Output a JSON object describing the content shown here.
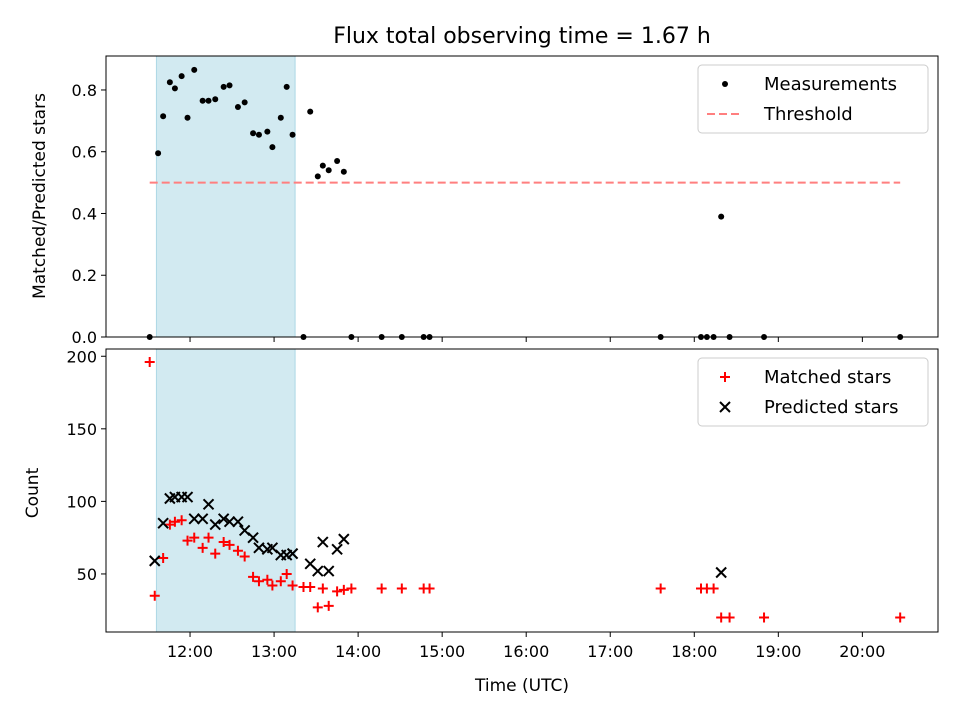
{
  "figure": {
    "title": "Flux total observing time = 1.67 h",
    "shaded_span": {
      "start_hour": 11.6,
      "end_hour": 13.25,
      "color": "#add8e6"
    }
  },
  "chart_data": [
    {
      "type": "scatter",
      "ylabel": "Matched/Predicted stars",
      "xlim": [
        11.0,
        20.9
      ],
      "ylim": [
        0,
        0.91
      ],
      "yticks": [
        0.0,
        0.2,
        0.4,
        0.6,
        0.8
      ],
      "ytick_labels": [
        "0.0",
        "0.2",
        "0.4",
        "0.6",
        "0.8"
      ],
      "legend": "top-right",
      "legend_entries": [
        "Measurements",
        "Threshold"
      ],
      "series": [
        {
          "name": "Measurements",
          "marker": "dot",
          "color": "#000000",
          "x": [
            11.52,
            11.62,
            11.68,
            11.76,
            11.82,
            11.9,
            11.97,
            12.05,
            12.15,
            12.22,
            12.3,
            12.4,
            12.47,
            12.57,
            12.65,
            12.75,
            12.82,
            12.92,
            12.98,
            13.08,
            13.15,
            13.22,
            13.35,
            13.43,
            13.52,
            13.58,
            13.65,
            13.75,
            13.83,
            13.92,
            14.28,
            14.52,
            14.78,
            14.85,
            17.6,
            18.08,
            18.15,
            18.23,
            18.32,
            18.42,
            18.83,
            20.45
          ],
          "y": [
            0.0,
            0.595,
            0.715,
            0.825,
            0.805,
            0.845,
            0.71,
            0.865,
            0.765,
            0.765,
            0.77,
            0.81,
            0.815,
            0.745,
            0.76,
            0.66,
            0.655,
            0.665,
            0.615,
            0.71,
            0.81,
            0.655,
            0.0,
            0.73,
            0.52,
            0.555,
            0.54,
            0.57,
            0.535,
            0.0,
            0.0,
            0.0,
            0.0,
            0.0,
            0.0,
            0.0,
            0.0,
            0.0,
            0.39,
            0.0,
            0.0,
            0.0
          ]
        },
        {
          "name": "Threshold",
          "marker": "dashed-line",
          "color": "#ff7f7f",
          "x": [
            11.52,
            20.45
          ],
          "y": [
            0.5,
            0.5
          ]
        }
      ]
    },
    {
      "type": "scatter",
      "xlabel": "Time (UTC)",
      "ylabel": "Count",
      "xlim": [
        11.0,
        20.9
      ],
      "ylim": [
        10,
        205
      ],
      "xticks": [
        12,
        13,
        14,
        15,
        16,
        17,
        18,
        19,
        20
      ],
      "xtick_labels": [
        "12:00",
        "13:00",
        "14:00",
        "15:00",
        "16:00",
        "17:00",
        "18:00",
        "19:00",
        "20:00"
      ],
      "yticks": [
        50,
        100,
        150,
        200
      ],
      "ytick_labels": [
        "50",
        "100",
        "150",
        "200"
      ],
      "legend": "top-right",
      "legend_entries": [
        "Matched stars",
        "Predicted stars"
      ],
      "series": [
        {
          "name": "Matched stars",
          "marker": "plus",
          "color": "#ff0000",
          "x": [
            11.52,
            11.58,
            11.68,
            11.76,
            11.82,
            11.9,
            11.97,
            12.05,
            12.15,
            12.22,
            12.3,
            12.4,
            12.47,
            12.57,
            12.65,
            12.75,
            12.82,
            12.92,
            12.98,
            13.08,
            13.15,
            13.22,
            13.35,
            13.43,
            13.52,
            13.58,
            13.65,
            13.75,
            13.83,
            13.92,
            14.28,
            14.52,
            14.78,
            14.85,
            17.6,
            18.08,
            18.15,
            18.23,
            18.32,
            18.42,
            18.83,
            20.45
          ],
          "y": [
            196,
            35,
            61,
            84,
            86,
            87,
            73,
            75,
            68,
            75,
            64,
            72,
            70,
            66,
            62,
            48,
            45,
            46,
            42,
            45,
            50,
            42,
            41,
            41,
            27,
            40,
            28,
            38,
            39,
            40,
            40,
            40,
            40,
            40,
            40,
            40,
            40,
            40,
            20,
            20,
            20,
            20
          ]
        },
        {
          "name": "Predicted stars",
          "marker": "x",
          "color": "#000000",
          "x": [
            11.58,
            11.68,
            11.76,
            11.82,
            11.9,
            11.97,
            12.05,
            12.15,
            12.22,
            12.3,
            12.4,
            12.47,
            12.57,
            12.65,
            12.75,
            12.82,
            12.92,
            12.98,
            13.08,
            13.15,
            13.22,
            13.43,
            13.52,
            13.58,
            13.65,
            13.75,
            13.83,
            18.32
          ],
          "y": [
            59,
            85,
            102,
            103,
            103,
            103,
            88,
            88,
            98,
            84,
            88,
            86,
            86,
            80,
            75,
            68,
            67,
            68,
            63,
            63,
            64,
            57,
            52,
            72,
            52,
            67,
            74,
            51
          ]
        }
      ]
    }
  ]
}
